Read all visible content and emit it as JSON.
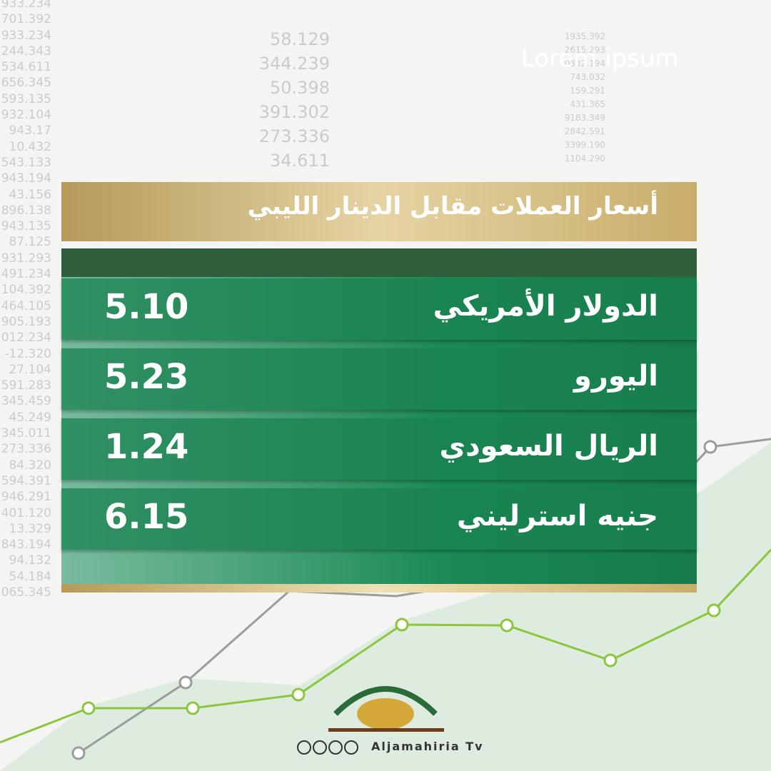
{
  "header": {
    "title": "أسعار العملات مقابل الدينار الليبي"
  },
  "rates": [
    {
      "currency": "الدولار الأمريكي",
      "value": "5.10"
    },
    {
      "currency": "اليورو",
      "value": "5.23"
    },
    {
      "currency": "الريال السعودي",
      "value": "1.24"
    },
    {
      "currency": "جنيه استرليني",
      "value": "6.15"
    }
  ],
  "background": {
    "watermark": "Lorem ipsum",
    "left_column": [
      "933.234",
      "701.392",
      "933.234",
      "244.343",
      "534.611",
      "656.345",
      "593.135",
      "932.104",
      "943.17",
      "10.432",
      "543.133",
      "943.194",
      "43.156",
      "896.138",
      "943.135",
      "87.125",
      "931.293",
      "491.234",
      "104.392",
      "464.105",
      "905.193",
      "012.234",
      "-12.320",
      "27.104",
      "591.283",
      "345.459",
      "45.249",
      "345.011",
      "273.336",
      "84.320",
      "594.391",
      "946.291",
      "401.120",
      "13.329",
      "843.194",
      "94.132",
      "54.184",
      "065.345"
    ],
    "middle_column": [
      "58.129",
      "344.239",
      "50.398",
      "391.302",
      "273.336",
      "34.611"
    ],
    "right_column": [
      "1935.392",
      "2615.293",
      "0332.194",
      "743.032",
      "159.291",
      "431.365",
      "9183.349",
      "2842.591",
      "3399.190",
      "1104.290"
    ]
  },
  "footer": {
    "brand": "Aljamahiria Tv"
  }
}
